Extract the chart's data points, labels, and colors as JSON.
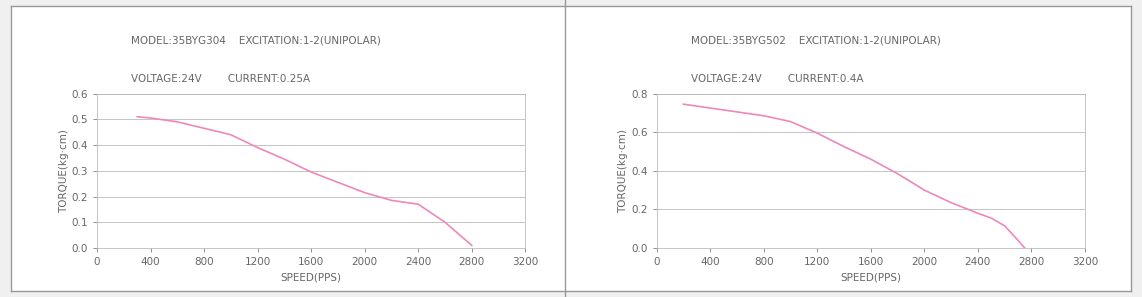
{
  "chart1": {
    "title_line1": "MODEL:35BYG304    EXCITATION:1-2(UNIPOLAR)",
    "title_line2": "VOLTAGE:24V        CURRENT:0.25A",
    "xlabel": "SPEED(PPS)",
    "ylabel": "TORQUE(kg·cm)",
    "xlim": [
      0,
      3200
    ],
    "ylim": [
      0,
      0.6
    ],
    "xticks": [
      0,
      400,
      800,
      1200,
      1600,
      2000,
      2400,
      2800,
      3200
    ],
    "yticks": [
      0,
      0.1,
      0.2,
      0.3,
      0.4,
      0.5,
      0.6
    ],
    "speed": [
      300,
      400,
      600,
      800,
      1000,
      1200,
      1400,
      1600,
      1800,
      2000,
      2200,
      2400,
      2600,
      2800
    ],
    "torque": [
      0.51,
      0.505,
      0.49,
      0.465,
      0.44,
      0.39,
      0.345,
      0.295,
      0.255,
      0.215,
      0.185,
      0.17,
      0.1,
      0.01
    ]
  },
  "chart2": {
    "title_line1": "MODEL:35BYG502    EXCITATION:1-2(UNIPOLAR)",
    "title_line2": "VOLTAGE:24V        CURRENT:0.4A",
    "xlabel": "SPEED(PPS)",
    "ylabel": "TORQUE(kg·cm)",
    "xlim": [
      0,
      3200
    ],
    "ylim": [
      0,
      0.8
    ],
    "xticks": [
      0,
      400,
      800,
      1200,
      1600,
      2000,
      2400,
      2800,
      3200
    ],
    "yticks": [
      0,
      0.2,
      0.4,
      0.6,
      0.8
    ],
    "speed": [
      200,
      400,
      600,
      800,
      1000,
      1200,
      1400,
      1600,
      1800,
      2000,
      2200,
      2400,
      2500,
      2600,
      2700,
      2750
    ],
    "torque": [
      0.745,
      0.725,
      0.705,
      0.685,
      0.655,
      0.595,
      0.525,
      0.46,
      0.385,
      0.3,
      0.235,
      0.18,
      0.155,
      0.115,
      0.04,
      0.0
    ]
  },
  "line_color": "#EE88BB",
  "line_width": 1.2,
  "grid_color": "#BBBBBB",
  "grid_linewidth": 0.6,
  "text_color": "#666666",
  "axis_label_fontsize": 7.5,
  "tick_fontsize": 7.5,
  "title_fontsize": 7.5,
  "border_color": "#999999",
  "background_color": "#FFFFFF",
  "fig_bg_color": "#F0F0F0"
}
